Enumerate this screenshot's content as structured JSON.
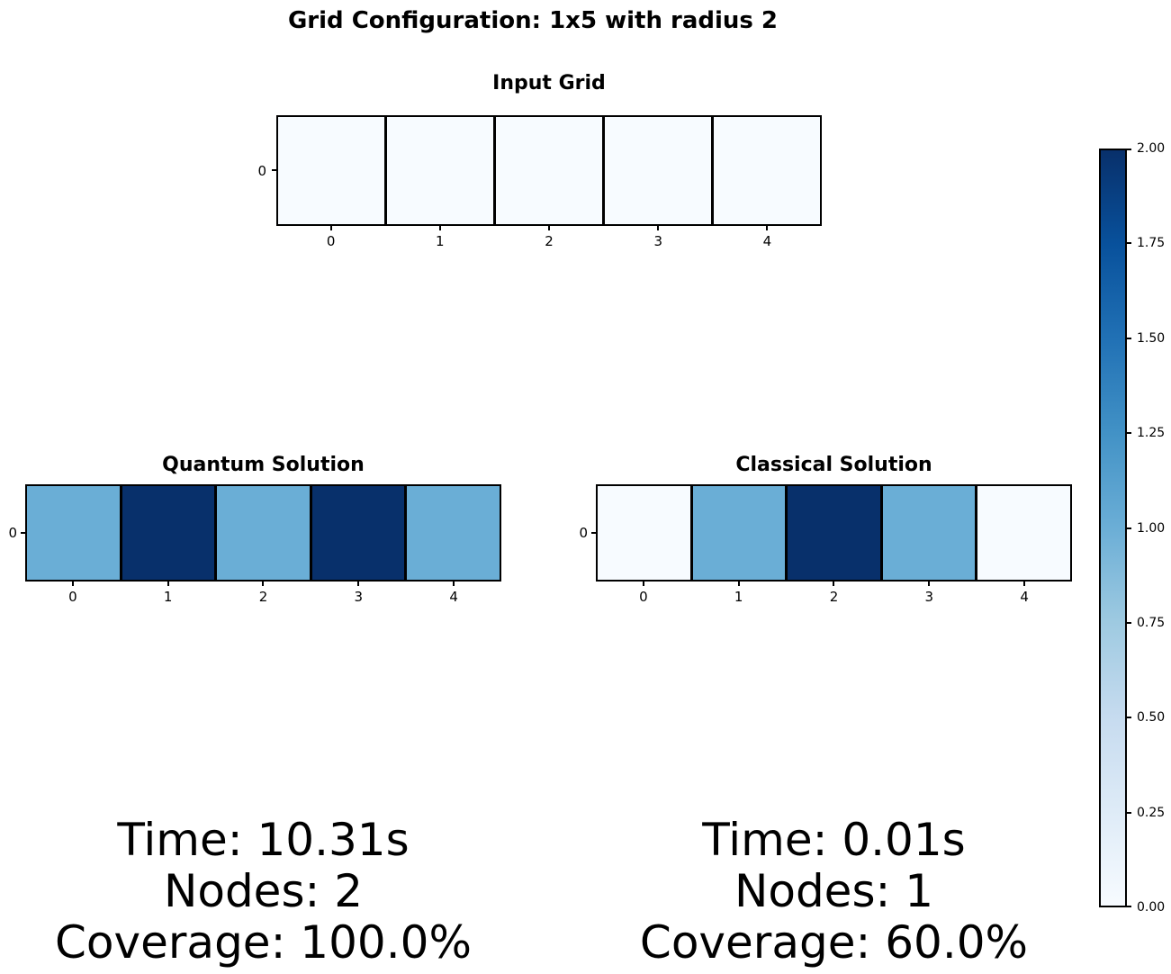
{
  "figure": {
    "suptitle": "Grid Configuration: 1x5 with radius 2",
    "background_color": "#ffffff",
    "text_color": "#000000"
  },
  "colormap": {
    "name": "Blues",
    "range": [
      0,
      2
    ],
    "value_colors": {
      "0": "#f7fbff",
      "1": "#6aaed6",
      "2": "#08306b"
    },
    "gradient_stops_top_to_bottom": [
      "#08306b",
      "#08519c",
      "#2171b5",
      "#4292c6",
      "#6baed6",
      "#9ecae1",
      "#c6dbef",
      "#deebf7",
      "#f7fbff"
    ],
    "cell_edge_color": "#000000"
  },
  "chart_data": [
    {
      "type": "heatmap",
      "title": "Input Grid",
      "rows": 1,
      "cols": 5,
      "x_tick_labels": [
        "0",
        "1",
        "2",
        "3",
        "4"
      ],
      "y_tick_labels": [
        "0"
      ],
      "values": [
        [
          0,
          0,
          0,
          0,
          0
        ]
      ]
    },
    {
      "type": "heatmap",
      "title": "Quantum Solution",
      "rows": 1,
      "cols": 5,
      "x_tick_labels": [
        "0",
        "1",
        "2",
        "3",
        "4"
      ],
      "y_tick_labels": [
        "0"
      ],
      "values": [
        [
          1,
          2,
          1,
          2,
          1
        ]
      ],
      "stats": [
        "Time: 10.31s",
        "Nodes: 2",
        "Coverage: 100.0%"
      ]
    },
    {
      "type": "heatmap",
      "title": "Classical Solution",
      "rows": 1,
      "cols": 5,
      "x_tick_labels": [
        "0",
        "1",
        "2",
        "3",
        "4"
      ],
      "y_tick_labels": [
        "0"
      ],
      "values": [
        [
          0,
          1,
          2,
          1,
          0
        ]
      ],
      "stats": [
        "Time: 0.01s",
        "Nodes: 1",
        "Coverage: 60.0%"
      ]
    }
  ],
  "colorbar": {
    "min": 0.0,
    "max": 2.0,
    "tick_labels_top_to_bottom": [
      "2.00",
      "1.75",
      "1.50",
      "1.25",
      "1.00",
      "0.75",
      "0.50",
      "0.25",
      "0.00"
    ]
  }
}
